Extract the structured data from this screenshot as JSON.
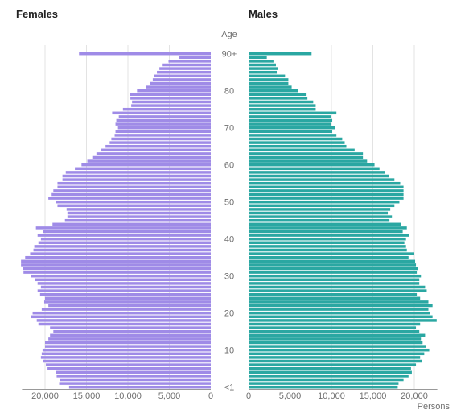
{
  "chart_data": {
    "type": "bar",
    "subtype": "population-pyramid",
    "left_panel_title": "Females",
    "right_panel_title": "Males",
    "age_axis_label": "Age",
    "x_axis_label": "Persons",
    "age_tick_labels": [
      "<1",
      "10",
      "20",
      "30",
      "40",
      "50",
      "60",
      "70",
      "80",
      "90+"
    ],
    "age_tick_values": [
      0,
      10,
      20,
      30,
      40,
      50,
      60,
      70,
      80,
      90
    ],
    "females_ticks": [
      "20,000",
      "15,000",
      "10,000",
      "5,000",
      "0"
    ],
    "females_tick_values": [
      20000,
      15000,
      10000,
      5000,
      0
    ],
    "males_ticks": [
      "0",
      "5,000",
      "10,000",
      "15,000",
      "20,000"
    ],
    "males_tick_values": [
      0,
      5000,
      10000,
      15000,
      20000
    ],
    "xlim": [
      0,
      24000
    ],
    "grid": "vertical",
    "colors": {
      "females": "#9f8be7",
      "males": "#2aa7a2",
      "grid": "#e3e3e3",
      "axis": "#999999"
    },
    "ages": [
      0,
      1,
      2,
      3,
      4,
      5,
      6,
      7,
      8,
      9,
      10,
      11,
      12,
      13,
      14,
      15,
      16,
      17,
      18,
      19,
      20,
      21,
      22,
      23,
      24,
      25,
      26,
      27,
      28,
      29,
      30,
      31,
      32,
      33,
      34,
      35,
      36,
      37,
      38,
      39,
      40,
      41,
      42,
      43,
      44,
      45,
      46,
      47,
      48,
      49,
      50,
      51,
      52,
      53,
      54,
      55,
      56,
      57,
      58,
      59,
      60,
      61,
      62,
      63,
      64,
      65,
      66,
      67,
      68,
      69,
      70,
      71,
      72,
      73,
      74,
      75,
      76,
      77,
      78,
      79,
      80,
      81,
      82,
      83,
      84,
      85,
      86,
      87,
      88,
      89,
      90
    ],
    "series": [
      {
        "name": "Females",
        "values": [
          17100,
          18300,
          18200,
          18600,
          18700,
          19700,
          19900,
          20200,
          20500,
          20400,
          20300,
          20000,
          20000,
          19600,
          19400,
          19000,
          19400,
          20800,
          21000,
          21700,
          21500,
          20400,
          19600,
          20100,
          20000,
          20600,
          20900,
          20500,
          20900,
          21200,
          21700,
          22600,
          22700,
          22900,
          22900,
          22400,
          21800,
          21400,
          21300,
          20800,
          20500,
          20900,
          20200,
          21100,
          19100,
          17600,
          17300,
          17300,
          17400,
          18500,
          18700,
          19600,
          19200,
          19000,
          18500,
          18500,
          17900,
          17900,
          17500,
          16400,
          15600,
          14900,
          14300,
          13800,
          13200,
          12700,
          12200,
          12000,
          11600,
          11500,
          11200,
          11500,
          11400,
          11100,
          11900,
          10600,
          9600,
          9500,
          9700,
          9800,
          8900,
          7800,
          7300,
          7000,
          6800,
          6500,
          6200,
          5900,
          5100,
          3800,
          15900
        ]
      },
      {
        "name": "Males",
        "values": [
          18000,
          18100,
          18700,
          19300,
          19700,
          19600,
          20200,
          20900,
          20700,
          21200,
          21800,
          21400,
          21000,
          20800,
          21300,
          20600,
          20200,
          20700,
          22700,
          22200,
          21900,
          21700,
          22200,
          21700,
          20700,
          20300,
          21500,
          21300,
          20600,
          20600,
          20800,
          20300,
          20400,
          20200,
          20100,
          19300,
          20000,
          19100,
          19000,
          18800,
          19000,
          19400,
          18600,
          19100,
          18400,
          17000,
          17300,
          16800,
          17100,
          17600,
          18200,
          18700,
          18700,
          18700,
          18700,
          18300,
          17600,
          16900,
          16500,
          15800,
          15200,
          14300,
          13800,
          13800,
          12800,
          11800,
          11600,
          11300,
          10600,
          10100,
          10400,
          10000,
          10100,
          10000,
          10600,
          8100,
          8100,
          7800,
          7100,
          7000,
          6000,
          5200,
          4800,
          4800,
          4400,
          3400,
          3500,
          3300,
          3000,
          2200,
          7600
        ]
      }
    ]
  }
}
